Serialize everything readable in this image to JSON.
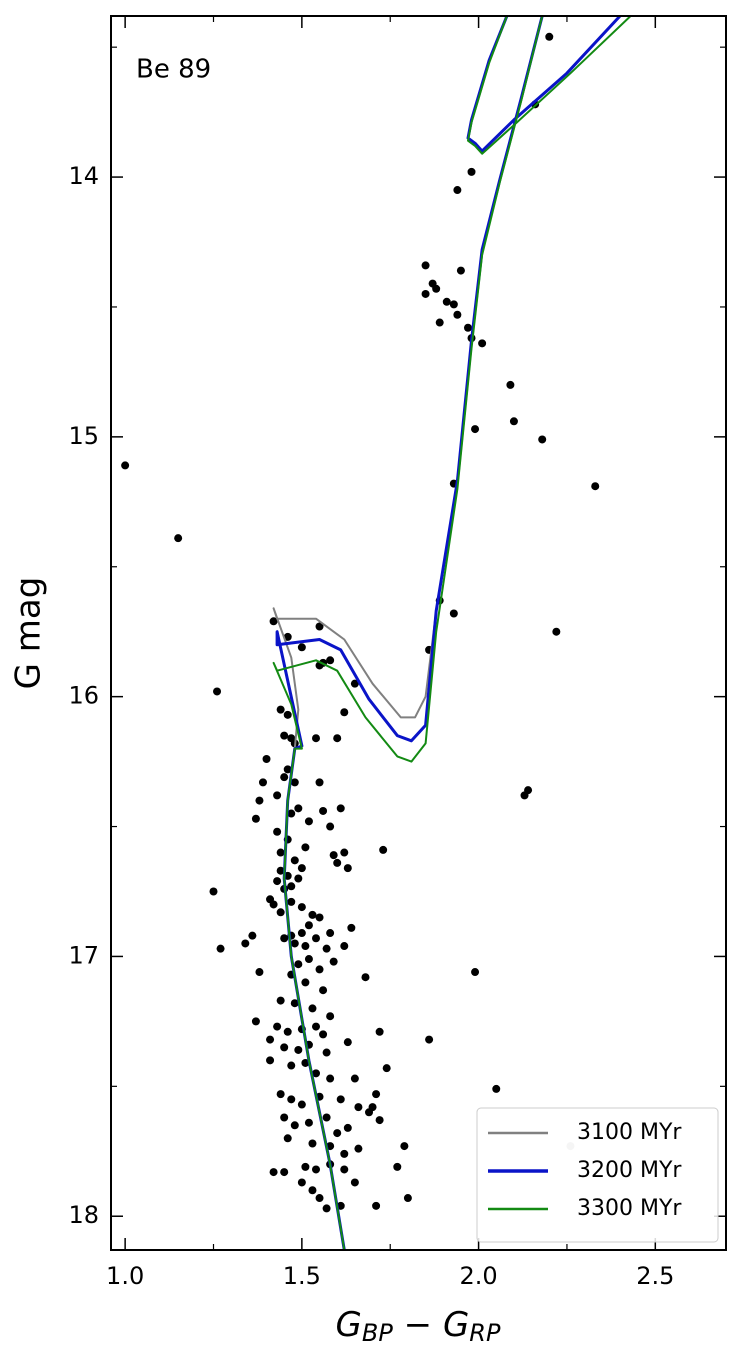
{
  "chart_data": {
    "type": "scatter",
    "annotation": "Be 89",
    "xlabel": [
      "G",
      "BP",
      " − ",
      "G",
      "RP"
    ],
    "ylabel": "G mag",
    "xlim": [
      0.96,
      2.7
    ],
    "ylim": [
      13.38,
      18.13
    ],
    "yinvert": true,
    "xticks": [
      {
        "value": 1,
        "label": "1.0"
      },
      1.5,
      {
        "value": 2,
        "label": "2.0"
      },
      2.5
    ],
    "yticks": [
      14,
      15,
      16,
      17,
      18
    ],
    "xminor": [
      1.25,
      1.75,
      2.25
    ],
    "yminor": [
      13.5,
      14.5,
      15.5,
      16.5,
      17.5
    ],
    "legend": "lower right",
    "scatter": [
      {
        "color": "#000000",
        "x": [
          2.2,
          2.16,
          1.98,
          1.94,
          1.85,
          1.85,
          1.87,
          1.88,
          1.95,
          1.91,
          1.93,
          1.94,
          1.89,
          1.97,
          1.98,
          2.01,
          2.09,
          2.1,
          1.99,
          2.18,
          1.93,
          2.33,
          1.0,
          1.15,
          1.89,
          1.93,
          2.22,
          1.86,
          1.26,
          2.14,
          2.13,
          1.73,
          1.99,
          1.86,
          2.05,
          1.8,
          1.71,
          1.79,
          1.77,
          1.25,
          1.27,
          1.34,
          1.36,
          1.37,
          1.38,
          1.42,
          1.46,
          1.5,
          1.55,
          1.55,
          1.56,
          1.58,
          1.65,
          1.62,
          1.6,
          1.54,
          1.44,
          1.46,
          1.45,
          1.47,
          1.48,
          1.4,
          1.46,
          1.45,
          1.48,
          1.43,
          1.39,
          1.38,
          1.37,
          1.47,
          1.49,
          1.55,
          1.56,
          1.52,
          1.58,
          1.61,
          1.43,
          1.46,
          1.44,
          1.48,
          1.51,
          1.59,
          1.62,
          1.6,
          1.63,
          1.5,
          1.44,
          1.46,
          1.43,
          1.45,
          1.47,
          1.49,
          1.41,
          1.42,
          1.44,
          1.47,
          1.5,
          1.53,
          1.55,
          1.52,
          1.5,
          1.47,
          1.45,
          1.48,
          1.51,
          1.54,
          1.58,
          1.64,
          1.57,
          1.52,
          1.49,
          1.55,
          1.59,
          1.62,
          1.47,
          1.51,
          1.56,
          1.68,
          1.44,
          1.48,
          1.53,
          1.58,
          1.43,
          1.46,
          1.5,
          1.54,
          1.56,
          1.41,
          1.45,
          1.49,
          1.52,
          1.57,
          1.63,
          1.72,
          1.41,
          1.47,
          1.51,
          1.54,
          1.58,
          1.65,
          1.74,
          1.44,
          1.47,
          1.5,
          1.55,
          1.61,
          1.66,
          1.69,
          1.71,
          1.45,
          1.48,
          1.52,
          1.57,
          1.6,
          1.63,
          1.7,
          1.72,
          1.46,
          1.53,
          1.58,
          1.62,
          1.66,
          1.42,
          1.45,
          1.51,
          1.54,
          1.58,
          1.62,
          1.5,
          1.53,
          1.55,
          1.57,
          1.61,
          1.65
        ],
        "y": [
          13.46,
          13.72,
          13.98,
          14.05,
          14.34,
          14.45,
          14.41,
          14.43,
          14.36,
          14.48,
          14.49,
          14.53,
          14.56,
          14.58,
          14.62,
          14.64,
          14.8,
          14.94,
          14.97,
          15.01,
          15.18,
          15.19,
          15.11,
          15.39,
          15.63,
          15.68,
          15.75,
          15.82,
          15.98,
          16.36,
          16.38,
          16.59,
          17.06,
          17.32,
          17.51,
          17.93,
          17.96,
          17.73,
          17.81,
          16.75,
          16.97,
          16.95,
          16.92,
          17.25,
          17.06,
          15.71,
          15.77,
          15.81,
          15.73,
          15.88,
          15.87,
          15.86,
          15.95,
          16.06,
          16.16,
          16.16,
          16.05,
          16.07,
          16.15,
          16.16,
          16.18,
          16.24,
          16.28,
          16.31,
          16.33,
          16.38,
          16.33,
          16.4,
          16.47,
          16.45,
          16.43,
          16.33,
          16.44,
          16.48,
          16.5,
          16.43,
          16.52,
          16.55,
          16.6,
          16.63,
          16.58,
          16.61,
          16.6,
          16.64,
          16.66,
          16.66,
          16.67,
          16.69,
          16.71,
          16.74,
          16.73,
          16.7,
          16.78,
          16.8,
          16.83,
          16.79,
          16.81,
          16.84,
          16.85,
          16.88,
          16.91,
          16.92,
          16.93,
          16.95,
          16.96,
          16.93,
          16.91,
          16.89,
          16.97,
          17.01,
          17.03,
          17.05,
          17.02,
          16.96,
          17.07,
          17.1,
          17.13,
          17.08,
          17.17,
          17.18,
          17.2,
          17.23,
          17.27,
          17.29,
          17.28,
          17.27,
          17.3,
          17.32,
          17.35,
          17.36,
          17.34,
          17.37,
          17.33,
          17.29,
          17.4,
          17.42,
          17.41,
          17.45,
          17.47,
          17.47,
          17.43,
          17.53,
          17.55,
          17.57,
          17.54,
          17.55,
          17.58,
          17.6,
          17.53,
          17.62,
          17.65,
          17.64,
          17.62,
          17.68,
          17.66,
          17.58,
          17.63,
          17.7,
          17.72,
          17.73,
          17.76,
          17.74,
          17.83,
          17.83,
          17.81,
          17.82,
          17.8,
          17.82,
          17.87,
          17.9,
          17.93,
          17.97,
          17.96,
          17.87
        ]
      },
      {
        "color": "#bbbbbb",
        "x": [
          2.26
        ],
        "y": [
          17.73
        ]
      }
    ],
    "series": [
      {
        "name": "3100 MYr",
        "color": "#808080",
        "linewidth": 2,
        "x": [
          1.62,
          1.58,
          1.52,
          1.47,
          1.45,
          1.46,
          1.48,
          1.49,
          1.47,
          1.42,
          1.43,
          1.54,
          1.62,
          1.7,
          1.78,
          1.82,
          1.85,
          1.88,
          1.94,
          1.98,
          2.01,
          2.06,
          2.12,
          2.18,
          null,
          2.08,
          2.03,
          1.98,
          1.97,
          1.99,
          2.01,
          2.1,
          2.25,
          2.4
        ],
        "values": [
          18.13,
          17.8,
          17.4,
          17.0,
          16.7,
          16.4,
          16.2,
          16.05,
          15.85,
          15.66,
          15.7,
          15.7,
          15.78,
          15.95,
          16.08,
          16.08,
          16.0,
          15.67,
          15.17,
          14.63,
          14.28,
          14.01,
          13.7,
          13.38,
          null,
          13.38,
          13.55,
          13.78,
          13.85,
          13.87,
          13.9,
          13.78,
          13.6,
          13.38
        ]
      },
      {
        "name": "3200 MYr",
        "color": "#0a14c8",
        "linewidth": 3,
        "x": [
          1.62,
          1.58,
          1.52,
          1.47,
          1.45,
          1.46,
          1.48,
          1.5,
          1.43,
          1.43,
          1.55,
          1.61,
          1.69,
          1.77,
          1.81,
          1.85,
          1.88,
          1.94,
          1.98,
          2.01,
          2.06,
          2.12,
          2.18,
          null,
          2.08,
          2.03,
          1.98,
          1.97,
          1.99,
          2.01,
          2.1,
          2.25,
          2.4
        ],
        "values": [
          18.13,
          17.8,
          17.4,
          17.0,
          16.7,
          16.4,
          16.2,
          16.19,
          15.75,
          15.8,
          15.78,
          15.82,
          16.01,
          16.15,
          16.17,
          16.11,
          15.67,
          15.17,
          14.63,
          14.28,
          14.01,
          13.7,
          13.38,
          null,
          13.38,
          13.55,
          13.78,
          13.85,
          13.87,
          13.9,
          13.78,
          13.6,
          13.38
        ]
      },
      {
        "name": "3300 MYr",
        "color": "#138a13",
        "linewidth": 2,
        "x": [
          1.62,
          1.58,
          1.52,
          1.47,
          1.45,
          1.46,
          1.48,
          1.5,
          1.47,
          1.42,
          1.43,
          1.54,
          1.6,
          1.68,
          1.77,
          1.81,
          1.85,
          1.88,
          1.94,
          1.98,
          2.01,
          2.06,
          2.12,
          2.18,
          null,
          2.08,
          2.03,
          1.98,
          1.97,
          1.99,
          2.01,
          2.1,
          2.26,
          2.43
        ],
        "values": [
          18.13,
          17.8,
          17.4,
          17.0,
          16.7,
          16.4,
          16.2,
          16.2,
          16.03,
          15.87,
          15.9,
          15.86,
          15.9,
          16.08,
          16.23,
          16.25,
          16.18,
          15.75,
          15.2,
          14.66,
          14.3,
          14.02,
          13.71,
          13.38,
          null,
          13.38,
          13.56,
          13.79,
          13.86,
          13.88,
          13.91,
          13.8,
          13.6,
          13.38
        ]
      }
    ]
  }
}
